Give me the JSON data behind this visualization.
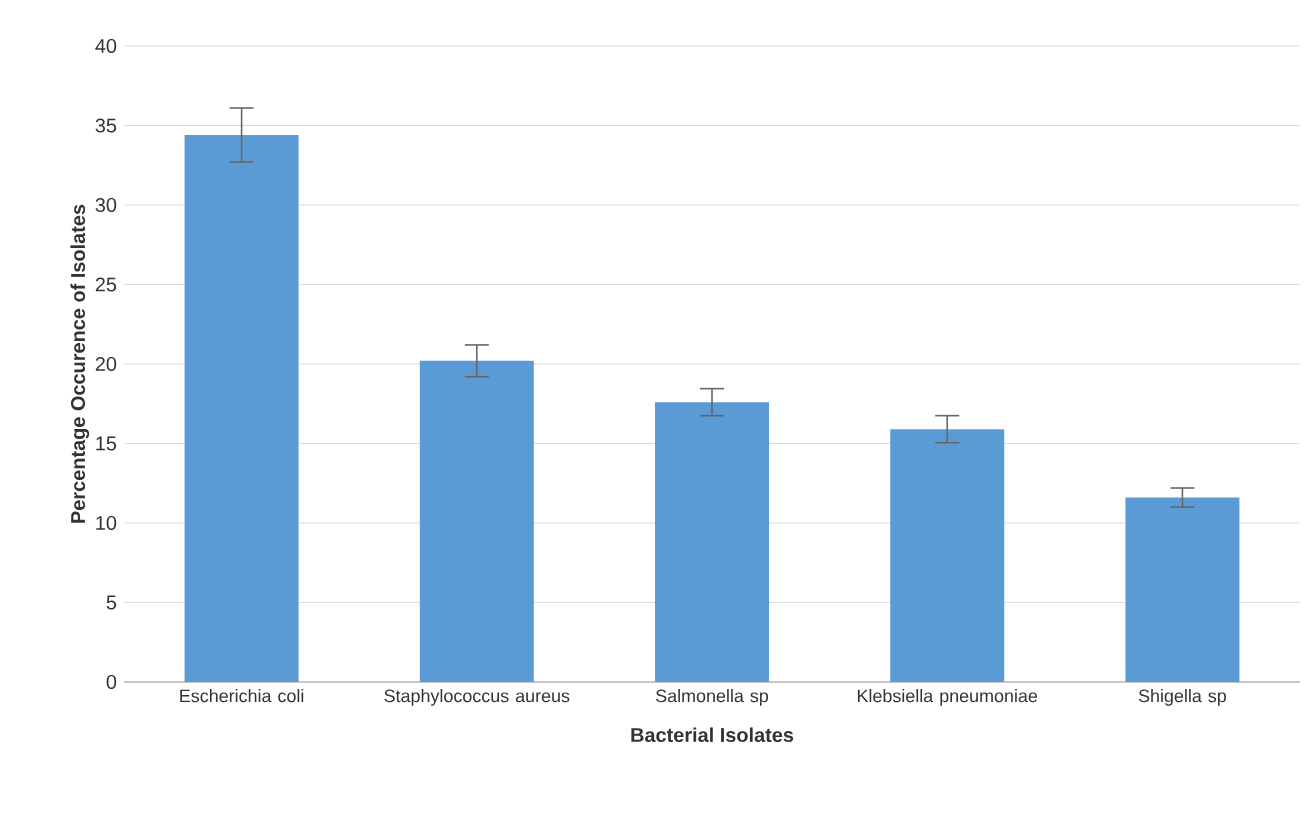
{
  "chart_data": {
    "type": "bar",
    "xlabel": "Bacterial Isolates",
    "ylabel": "Percentage Occurence of Isolates",
    "categories": [
      "Escherichia coli",
      "Staphylococcus aureus",
      "Salmonella sp",
      "Klebsiella pneumoniae",
      "Shigella sp"
    ],
    "values": [
      34.4,
      20.2,
      17.6,
      15.9,
      11.6
    ],
    "errors": [
      1.7,
      1.0,
      0.85,
      0.85,
      0.6
    ],
    "color": "#5b9bd5",
    "ylim": [
      0,
      40
    ],
    "yticks": [
      0,
      5,
      10,
      15,
      20,
      25,
      30,
      35,
      40
    ],
    "grid": "y"
  }
}
